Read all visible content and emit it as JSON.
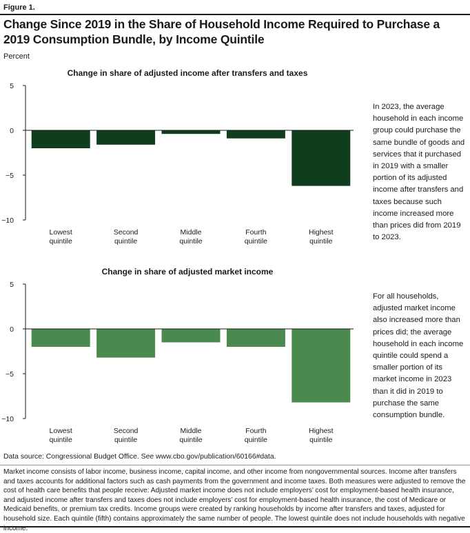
{
  "figure_label": "Figure 1.",
  "title": "Change Since 2019 in the Share of Household Income Required to Purchase a 2019 Consumption Bundle, by Income Quintile",
  "unit_label": "Percent",
  "colors": {
    "panel1_bar": "#0f3d1e",
    "panel2_bar": "#4a8a4e",
    "axis": "#1a1a1a"
  },
  "chart_data": [
    {
      "type": "bar",
      "title": "Change in share of adjusted income after transfers and taxes",
      "categories": [
        [
          "Lowest",
          "quintile"
        ],
        [
          "Second",
          "quintile"
        ],
        [
          "Middle",
          "quintile"
        ],
        [
          "Fourth",
          "quintile"
        ],
        [
          "Highest",
          "quintile"
        ]
      ],
      "values": [
        -2.0,
        -1.6,
        -0.4,
        -0.9,
        -6.2
      ],
      "ylim": [
        -10,
        5
      ],
      "yticks": [
        5,
        0,
        -5,
        -10
      ],
      "ytick_labels": [
        "5",
        "0",
        "−5",
        "−10"
      ],
      "grid": false
    },
    {
      "type": "bar",
      "title": "Change in share of adjusted market income",
      "categories": [
        [
          "Lowest",
          "quintile"
        ],
        [
          "Second",
          "quintile"
        ],
        [
          "Middle",
          "quintile"
        ],
        [
          "Fourth",
          "quintile"
        ],
        [
          "Highest",
          "quintile"
        ]
      ],
      "values": [
        -2.0,
        -3.2,
        -1.5,
        -2.0,
        -8.2
      ],
      "ylim": [
        -10,
        5
      ],
      "yticks": [
        5,
        0,
        -5,
        -10
      ],
      "ytick_labels": [
        "5",
        "0",
        "−5",
        "−10"
      ],
      "grid": false
    }
  ],
  "side_notes": [
    "In 2023, the average household in each income group could purchase the same bundle of goods and services that it purchased in 2019 with a smaller portion of its adjusted income after transfers and taxes because such income increased more than prices did from 2019 to 2023.",
    "For all households, adjusted market income also increased more than prices did; the average household in each income quintile could spend a smaller portion of its market income in 2023 than it did in 2019 to purchase the same consumption bundle."
  ],
  "source": {
    "prefix": "Data source: Congressional Budget Office. See ",
    "link": "www.cbo.gov/publication/60166#data",
    "suffix": "."
  },
  "notes": "Market income consists of labor income, business income, capital income, and other income from nongovernmental sources. Income after transfers and taxes accounts for additional factors such as cash payments from the government and income taxes. Both measures were adjusted to remove the cost of health care benefits that people receive: Adjusted market income does not include employers’ cost for employment-based health insurance, and adjusted income after transfers and taxes does not include employers’ cost for employment-based health insurance, the cost of Medicare or Medicaid benefits, or premium tax credits. Income groups were created by ranking households by income after transfers and taxes, adjusted for household size. Each quintile (fifth) contains approximately the same number of people. The lowest quintile does not include households with negative income."
}
